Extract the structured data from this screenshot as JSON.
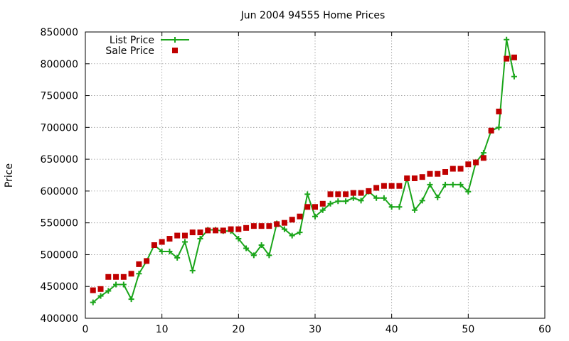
{
  "chart_data": {
    "type": "line",
    "title": "Jun 2004 94555 Home Prices",
    "xlabel": "",
    "ylabel": "Price",
    "xlim": [
      0,
      60
    ],
    "ylim": [
      400000,
      850000
    ],
    "x_ticks": [
      0,
      10,
      20,
      30,
      40,
      50,
      60
    ],
    "y_ticks": [
      400000,
      450000,
      500000,
      550000,
      600000,
      650000,
      700000,
      750000,
      800000,
      850000
    ],
    "grid": true,
    "legend": "top-left",
    "series": [
      {
        "name": "List Price",
        "style": "linespoints",
        "marker": "plus",
        "color": "#1aa51a",
        "x": [
          1,
          2,
          3,
          4,
          5,
          6,
          7,
          8,
          9,
          10,
          11,
          12,
          13,
          14,
          15,
          16,
          17,
          18,
          19,
          20,
          21,
          22,
          23,
          24,
          25,
          26,
          27,
          28,
          29,
          30,
          31,
          32,
          33,
          34,
          35,
          36,
          37,
          38,
          39,
          40,
          41,
          42,
          43,
          44,
          45,
          46,
          47,
          48,
          49,
          50,
          51,
          52,
          53,
          54,
          55,
          56
        ],
        "y": [
          425000,
          435000,
          443000,
          453000,
          453000,
          430000,
          470000,
          490000,
          515000,
          505000,
          505000,
          495000,
          520000,
          475000,
          525000,
          539000,
          539000,
          537000,
          537000,
          525000,
          510000,
          499000,
          515000,
          499000,
          549000,
          540000,
          530000,
          535000,
          595000,
          560000,
          570000,
          580000,
          584000,
          584000,
          589000,
          585000,
          599000,
          589000,
          589000,
          575000,
          575000,
          620000,
          570000,
          585000,
          610000,
          590000,
          610000,
          610000,
          610000,
          599000,
          645000,
          660000,
          695000,
          700000,
          838000,
          780000
        ]
      },
      {
        "name": "Sale Price",
        "style": "points",
        "marker": "square",
        "color": "#c00000",
        "x": [
          1,
          2,
          3,
          4,
          5,
          6,
          7,
          8,
          9,
          10,
          11,
          12,
          13,
          14,
          15,
          16,
          17,
          18,
          19,
          20,
          21,
          22,
          23,
          24,
          25,
          26,
          27,
          28,
          29,
          30,
          31,
          32,
          33,
          34,
          35,
          36,
          37,
          38,
          39,
          40,
          41,
          42,
          43,
          44,
          45,
          46,
          47,
          48,
          49,
          50,
          51,
          52,
          53,
          54,
          55,
          56
        ],
        "y": [
          444000,
          446000,
          465000,
          465000,
          465000,
          470000,
          485000,
          490000,
          515000,
          520000,
          525000,
          530000,
          530000,
          535000,
          535000,
          538000,
          538000,
          538000,
          540000,
          540000,
          542000,
          545000,
          545000,
          545000,
          548000,
          550000,
          555000,
          560000,
          575000,
          575000,
          580000,
          595000,
          595000,
          595000,
          597000,
          597000,
          600000,
          605000,
          608000,
          608000,
          608000,
          620000,
          620000,
          622000,
          627000,
          627000,
          630000,
          635000,
          635000,
          642000,
          645000,
          652000,
          695000,
          725000,
          808000,
          810000
        ]
      }
    ]
  }
}
